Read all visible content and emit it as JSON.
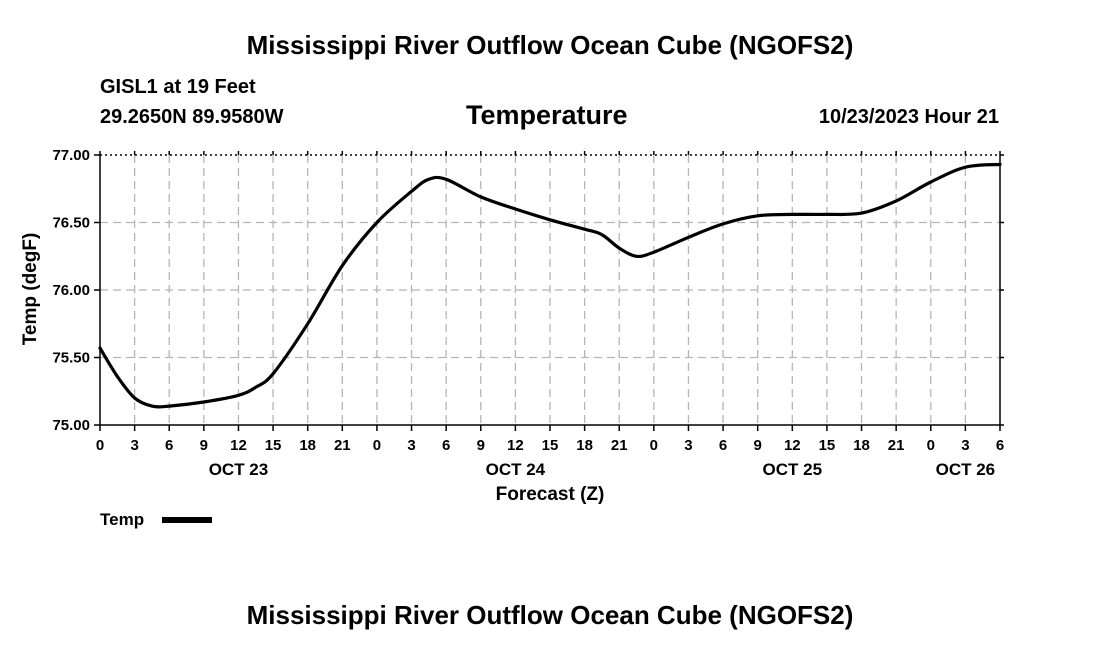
{
  "header": {
    "title": "Mississippi River Outflow Ocean Cube (NGOFS2)",
    "station": "GISL1 at 19 Feet",
    "coords": "29.2650N  89.9580W",
    "parameter": "Temperature",
    "datetime": "10/23/2023 Hour 21"
  },
  "footer": {
    "title": "Mississippi River Outflow Ocean Cube (NGOFS2)"
  },
  "legend": {
    "label": "Temp"
  },
  "chart_data": {
    "type": "line",
    "title": "Temperature",
    "xlabel": "Forecast (Z)",
    "ylabel": "Temp (degF)",
    "ylim": [
      75.0,
      77.0
    ],
    "xlim": [
      0,
      78
    ],
    "x_units": "hours from OCT 23 00Z",
    "yticks": [
      "75.00",
      "75.50",
      "76.00",
      "76.50",
      "77.00"
    ],
    "ytick_values": [
      75.0,
      75.5,
      76.0,
      76.5,
      77.0
    ],
    "xtick_labels": [
      "0",
      "3",
      "6",
      "9",
      "12",
      "15",
      "18",
      "21",
      "0",
      "3",
      "6",
      "9",
      "12",
      "15",
      "18",
      "21",
      "0",
      "3",
      "6",
      "9",
      "12",
      "15",
      "18",
      "21",
      "0",
      "3",
      "6"
    ],
    "date_labels": [
      {
        "label": "OCT 23",
        "hour": 12
      },
      {
        "label": "OCT 24",
        "hour": 36
      },
      {
        "label": "OCT 25",
        "hour": 60
      },
      {
        "label": "OCT 26",
        "hour": 75
      }
    ],
    "grid": true,
    "series": [
      {
        "name": "Temp",
        "color": "#000000",
        "x": [
          0,
          1.5,
          3,
          4.5,
          6,
          9,
          12,
          13.5,
          15,
          18,
          21,
          24,
          27,
          28.5,
          30,
          33,
          36,
          39,
          42,
          43.5,
          45,
          46.5,
          48,
          51,
          54,
          57,
          60,
          63,
          66,
          69,
          72,
          75,
          78
        ],
        "values": [
          75.57,
          75.36,
          75.2,
          75.14,
          75.14,
          75.17,
          75.22,
          75.28,
          75.38,
          75.75,
          76.18,
          76.5,
          76.73,
          76.82,
          76.82,
          76.69,
          76.6,
          76.52,
          76.45,
          76.41,
          76.31,
          76.25,
          76.28,
          76.39,
          76.49,
          76.55,
          76.56,
          76.56,
          76.57,
          76.66,
          76.8,
          76.91,
          76.93
        ]
      }
    ]
  }
}
